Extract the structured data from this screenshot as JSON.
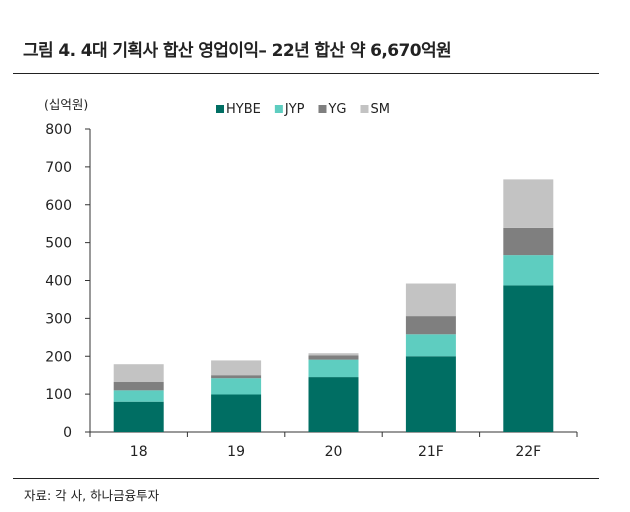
{
  "header": {
    "title": "그림 4. 4대 기획사 합산 영업이익– 22년 합산 약 6,670억원"
  },
  "footer": {
    "source": "자료: 각 사, 하나금융투자"
  },
  "chart_data": {
    "type": "bar",
    "stacked": true,
    "unit_label": "(십억원)",
    "categories": [
      "18",
      "19",
      "20",
      "21F",
      "22F"
    ],
    "series": [
      {
        "name": "HYBE",
        "color": "#006e63",
        "values": [
          80,
          99,
          145,
          200,
          387
        ]
      },
      {
        "name": "JYP",
        "color": "#5ecdc0",
        "values": [
          30,
          43,
          46,
          58,
          80
        ]
      },
      {
        "name": "YG",
        "color": "#7f7f7f",
        "values": [
          22,
          8,
          11,
          48,
          72
        ]
      },
      {
        "name": "SM",
        "color": "#c3c3c3",
        "values": [
          47,
          39,
          6,
          86,
          128
        ]
      }
    ],
    "ylim": [
      0,
      800
    ],
    "yticks": [
      0,
      100,
      200,
      300,
      400,
      500,
      600,
      700,
      800
    ],
    "grid": false,
    "legend": "top-right"
  }
}
